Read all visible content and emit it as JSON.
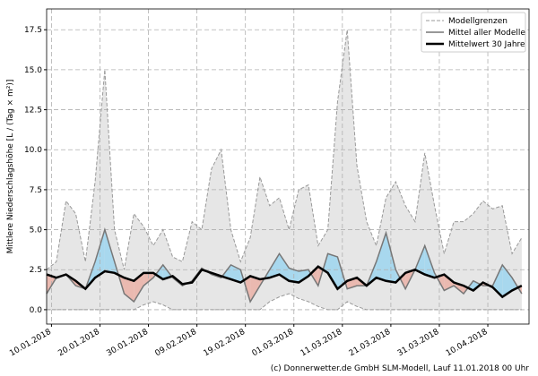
{
  "chart_data": {
    "type": "line",
    "ylabel": "Mittlere Niederschlagshöhe [L / (Tag × m²)]",
    "footer": "(c) Donnerwetter.de GmbH SLM-Modell, Lauf 11.01.2018 00 Uhr",
    "x": [
      -1,
      1,
      3,
      5,
      7,
      9,
      11,
      13,
      15,
      17,
      19,
      21,
      23,
      25,
      27,
      29,
      31,
      33,
      35,
      37,
      39,
      41,
      43,
      45,
      47,
      49,
      51,
      53,
      55,
      57,
      59,
      61,
      63,
      65,
      67,
      69,
      71,
      73,
      75,
      77,
      79,
      81,
      83,
      85,
      87,
      89,
      91,
      93,
      95,
      97
    ],
    "xlim": [
      -1,
      98.5
    ],
    "xticks": [
      {
        "value": 0,
        "label": "10.01.2018"
      },
      {
        "value": 10,
        "label": "20.01.2018"
      },
      {
        "value": 20,
        "label": "30.01.2018"
      },
      {
        "value": 30,
        "label": "09.02.2018"
      },
      {
        "value": 40,
        "label": "19.02.2018"
      },
      {
        "value": 50,
        "label": "01.03.2018"
      },
      {
        "value": 60,
        "label": "11.03.2018"
      },
      {
        "value": 70,
        "label": "21.03.2018"
      },
      {
        "value": 80,
        "label": "31.03.2018"
      },
      {
        "value": 90,
        "label": "10.04.2018"
      }
    ],
    "ylim": [
      -0.9,
      18.8
    ],
    "yticks": [
      {
        "value": 0,
        "label": "0.0"
      },
      2.5,
      {
        "value": 5,
        "label": "5.0"
      },
      7.5,
      {
        "value": 10,
        "label": "10.0"
      },
      12.5,
      {
        "value": 15,
        "label": "15.0"
      },
      17.5
    ],
    "grid": true,
    "legend": "upper right",
    "bounds": {
      "name": "Modellgrenzen",
      "color": "#999999",
      "fill": "#e6e6e6",
      "upper": [
        2.5,
        3.0,
        6.8,
        6.0,
        3.0,
        8.0,
        15.0,
        5.0,
        2.5,
        6.0,
        5.2,
        4.0,
        5.0,
        3.3,
        3.0,
        5.5,
        5.0,
        8.8,
        10.0,
        5.0,
        3.0,
        4.5,
        8.3,
        6.5,
        7.0,
        5.0,
        7.5,
        7.8,
        4.0,
        5.0,
        13.0,
        17.5,
        9.0,
        5.5,
        4.0,
        7.0,
        8.0,
        6.5,
        5.5,
        9.8,
        6.5,
        3.5,
        5.5,
        5.5,
        6.0,
        6.8,
        6.3,
        6.5,
        3.5,
        4.5
      ],
      "lower": [
        0.0,
        0.0,
        0.0,
        0.0,
        0.0,
        0.0,
        0.0,
        0.0,
        0.0,
        0.0,
        0.3,
        0.5,
        0.3,
        0.0,
        0.0,
        0.0,
        0.0,
        0.0,
        0.0,
        0.0,
        0.0,
        0.0,
        0.0,
        0.5,
        0.8,
        1.0,
        0.7,
        0.5,
        0.2,
        0.0,
        0.0,
        0.5,
        0.2,
        0.0,
        0.0,
        0.0,
        0.0,
        0.0,
        0.0,
        0.0,
        0.0,
        0.0,
        0.0,
        0.0,
        0.0,
        0.0,
        0.0,
        0.0,
        0.0,
        0.0
      ]
    },
    "series": [
      {
        "name": "Mittel aller Modelle",
        "color": "#777777",
        "values": [
          1.0,
          2.0,
          2.2,
          1.5,
          1.3,
          3.0,
          5.0,
          3.0,
          1.0,
          0.5,
          1.5,
          2.0,
          2.8,
          2.0,
          1.5,
          1.8,
          2.6,
          2.2,
          2.0,
          2.8,
          2.5,
          0.5,
          1.5,
          2.5,
          3.5,
          2.6,
          2.4,
          2.5,
          1.5,
          3.5,
          3.3,
          1.3,
          1.5,
          1.5,
          3.0,
          4.8,
          2.5,
          1.3,
          2.5,
          4.0,
          2.3,
          1.2,
          1.5,
          1.0,
          1.8,
          1.5,
          1.5,
          2.8,
          2.0,
          1.0
        ]
      },
      {
        "name": "Mittelwert 30 Jahre",
        "color": "#000000",
        "values": [
          2.2,
          2.0,
          2.2,
          1.8,
          1.3,
          2.0,
          2.4,
          2.3,
          2.0,
          1.8,
          2.3,
          2.3,
          1.9,
          2.1,
          1.6,
          1.7,
          2.5,
          2.3,
          2.1,
          1.9,
          1.7,
          2.1,
          1.9,
          2.0,
          2.2,
          1.8,
          1.7,
          2.1,
          2.7,
          2.3,
          1.3,
          1.8,
          2.0,
          1.5,
          2.0,
          1.8,
          1.7,
          2.3,
          2.5,
          2.2,
          2.0,
          2.2,
          1.7,
          1.5,
          1.2,
          1.7,
          1.4,
          0.8,
          1.2,
          1.5
        ]
      }
    ],
    "above_color": "#a8d8ee",
    "below_color": "#eab9b0"
  }
}
